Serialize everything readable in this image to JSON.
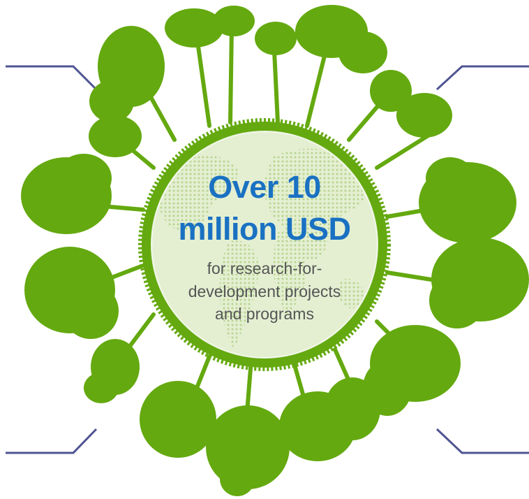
{
  "headline": {
    "line1": "Over 10",
    "line2": "million USD"
  },
  "subtext": {
    "line1": "for research-for-",
    "line2": "development projects",
    "line3": "and programs"
  },
  "colors": {
    "tree_green": "#64a90f",
    "globe_fill": "#e4efd2",
    "globe_dots": "#b7d58f",
    "headline_blue": "#1a71c2",
    "subtext_gray": "#555555",
    "connector_lines": "#4f5592"
  },
  "icons": [
    "tree-ring-illustration",
    "world-map-globe",
    "connector-lines"
  ]
}
